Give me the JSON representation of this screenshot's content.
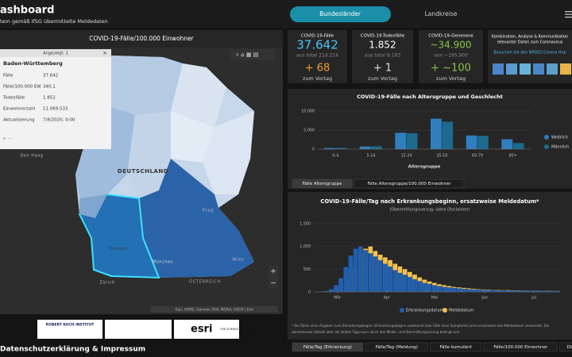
{
  "header": {
    "title": "ashboard",
    "subtitle": "tem gemäß IfSG übermittelte Meldedaten",
    "tabs": [
      "Bundesländer",
      "Landkreise"
    ]
  },
  "map": {
    "title": "COVID-19-Fälle/100.000 Einwohner",
    "popup": {
      "counter": "Angezeigt: 1",
      "name": "Baden-Württemberg",
      "rows": [
        [
          "Fälle",
          "37.642"
        ],
        [
          "Fälle/100.000 EW",
          "340,1"
        ],
        [
          "Todesfälle",
          "1.852"
        ],
        [
          "Einwohnerzahl",
          "11.069.533"
        ],
        [
          "Aktualisierung",
          "7/8/2020, 0:00"
        ]
      ]
    },
    "labels": [
      "DEUTSCHLAND",
      "Prag",
      "Stuttgart",
      "München",
      "Zürich",
      "Wien",
      "ÖSTERREICH",
      "Den Haag"
    ],
    "attribution": "Esri, HERE, Garmin, FAO, NOAA, USGS | Esri"
  },
  "footer": {
    "logos": [
      "ROBERT KOCH INSTITUT",
      "esri",
      "THE SCIENCE OF WHERE"
    ],
    "link": "Datenschutzerklärung & Impressum"
  },
  "kpis": [
    {
      "title": "COVID-19-Fälle",
      "value": "37.642",
      "total": "aus total 214.214",
      "delta": "+ 68",
      "note": "zum Vortag"
    },
    {
      "title": "COVID-19-Todesfälle",
      "value": "1.852",
      "total": "aus total 9.183",
      "delta": "+ 1",
      "note": "zum Vortag"
    },
    {
      "title": "COVID-19-Genesene",
      "value": "~34.900",
      "total": "von ~195.900",
      "delta": "+ ~100",
      "note": "zum Vortag"
    }
  ],
  "hub": {
    "text": [
      "Kombination, Analyse & Kommunikation",
      "relevanter Daten zum Coronavirus"
    ],
    "link": "Besuchen Sie den NPGEO Corona Hub"
  },
  "age_chart": {
    "type": "bar",
    "title": "COVID-19-Fälle nach Altersgruppe und Geschlecht",
    "x_label": "Altersgruppe",
    "categories": [
      "0-4",
      "5-14",
      "15-34",
      "35-59",
      "60-79",
      "80+"
    ],
    "series": [
      {
        "name": "Weiblich",
        "color": "#2f7fbf",
        "values": [
          300,
          700,
          4300,
          8000,
          3600,
          2600
        ]
      },
      {
        "name": "Männlich",
        "color": "#1d6a8e",
        "values": [
          350,
          750,
          4200,
          7200,
          3500,
          1600
        ]
      }
    ],
    "ylim": [
      0,
      10000
    ],
    "yticks": [
      0,
      {
        "value": 5000,
        "label": "5.000"
      },
      {
        "value": 10000,
        "label": "10.000"
      }
    ],
    "grid": true,
    "tabs": [
      "Fälle Altersgruppe",
      "Fälle Altersgruppe/100.000 Einwohner"
    ]
  },
  "daily_chart": {
    "type": "bar",
    "title": "COVID-19-Fälle/Tag nach Erkrankungsbeginn, ersatzweise Meldedatum*",
    "subtitle": "(Übermittlungsverzug, siehe Disclaimer)",
    "series": [
      {
        "name": "Meldedatum",
        "color": "#f2c14e",
        "values": [
          0,
          2,
          5,
          20,
          60,
          150,
          300,
          500,
          700,
          850,
          950,
          1000,
          900,
          820,
          760,
          700,
          620,
          560,
          500,
          440,
          380,
          320,
          270,
          230,
          200,
          170,
          150,
          130,
          110,
          100,
          90,
          80,
          70,
          60,
          55,
          50,
          45,
          45,
          40,
          40,
          35,
          35,
          30,
          30,
          28,
          28,
          25,
          25,
          22,
          20
        ]
      },
      {
        "name": "Erkrankungsdatum",
        "color": "#1f5fb0",
        "values": [
          5,
          10,
          20,
          60,
          150,
          300,
          550,
          800,
          950,
          1000,
          920,
          850,
          780,
          700,
          620,
          560,
          480,
          420,
          380,
          330,
          280,
          240,
          200,
          180,
          150,
          130,
          110,
          100,
          90,
          80,
          70,
          60,
          55,
          50,
          45,
          40,
          40,
          35,
          35,
          30,
          30,
          30,
          28,
          28,
          25,
          25,
          25,
          22,
          20,
          18
        ]
      }
    ],
    "xlim": [
      0,
      50
    ],
    "xticks": [
      {
        "value": 4.8,
        "label": "Mär"
      },
      {
        "value": 14.8,
        "label": "Apr"
      },
      {
        "value": 24.5,
        "label": "Mai"
      },
      {
        "value": 34.7,
        "label": "Jun"
      },
      {
        "value": 44.7,
        "label": "Jul"
      }
    ],
    "ylim": [
      0,
      1500
    ],
    "yticks": [
      0,
      500,
      {
        "value": 1000,
        "label": "1.000"
      },
      {
        "value": 1500,
        "label": "1.500"
      }
    ],
    "grid": true,
    "footnote": [
      "* Bei Fällen ohne Angaben zum Erkrankungsbeginn (Erkrankungsbeginn unbekannt bzw. Fälle ohne Symptome) wird ersatzweise das Meldedatum verwendet. Die",
      "abnehmende Fallzahl über die letzten Tage kann durch den Melde- und Übermittlungsverzug bedingt sein."
    ],
    "tabs": [
      "Fälle/Tag (Erkrankung)",
      "Fälle/Tag (Meldung)",
      "Fälle kumuliert",
      "Fälle/100.000 Einwohner",
      "Disclaimer"
    ]
  }
}
